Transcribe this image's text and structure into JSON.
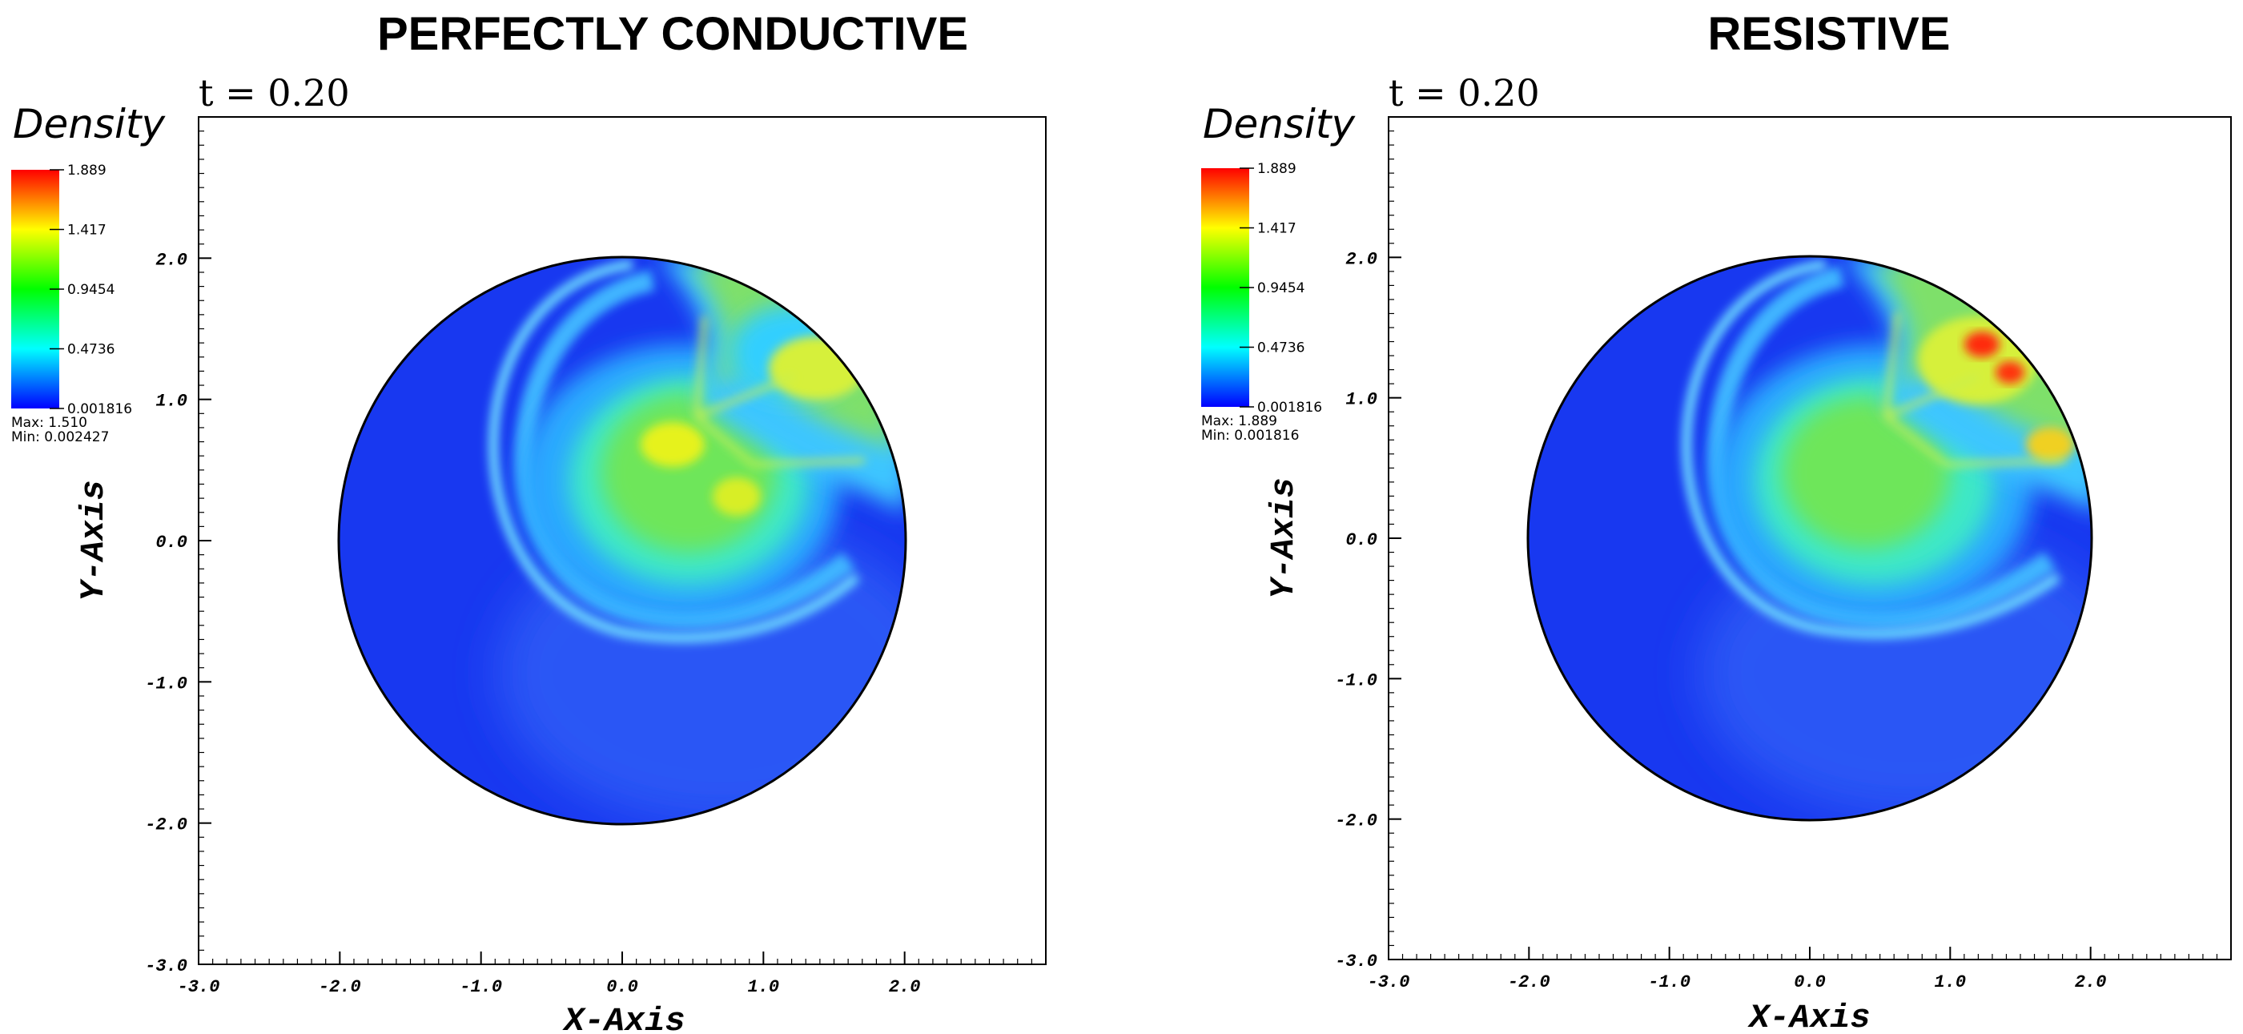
{
  "chart_data": [
    {
      "type": "heatmap",
      "title": "PERFECTLY CONDUCTIVE",
      "time_label": "t = 0.20",
      "colorbar": {
        "title": "Density",
        "ticks": [
          "1.889",
          "1.417",
          "0.9454",
          "0.4736",
          "0.001816"
        ],
        "max_text": "Max:  1.510",
        "min_text": "Min:  0.002427"
      },
      "xlabel": "X-Axis",
      "ylabel": "Y-Axis",
      "xlim": [
        -3.0,
        3.0
      ],
      "ylim": [
        -3.0,
        3.0
      ],
      "xticks": [
        "-3.0",
        "-2.0",
        "-1.0",
        "0.0",
        "1.0",
        "2.0"
      ],
      "yticks": [
        "-3.0",
        "-2.0",
        "-1.0",
        "0.0",
        "1.0",
        "2.0"
      ],
      "domain": {
        "shape": "circle",
        "center": [
          0,
          0
        ],
        "radius": 2.0
      },
      "colormap": [
        "#0000ff",
        "#00ffff",
        "#00ff00",
        "#ffff00",
        "#ff0000"
      ]
    },
    {
      "type": "heatmap",
      "title": "RESISTIVE",
      "time_label": "t = 0.20",
      "colorbar": {
        "title": "Density",
        "ticks": [
          "1.889",
          "1.417",
          "0.9454",
          "0.4736",
          "0.001816"
        ],
        "max_text": "Max:  1.889",
        "min_text": "Min:  0.001816"
      },
      "xlabel": "X-Axis",
      "ylabel": "Y-Axis",
      "xlim": [
        -3.0,
        3.0
      ],
      "ylim": [
        -3.0,
        3.0
      ],
      "xticks": [
        "-3.0",
        "-2.0",
        "-1.0",
        "0.0",
        "1.0",
        "2.0"
      ],
      "yticks": [
        "-3.0",
        "-2.0",
        "-1.0",
        "0.0",
        "1.0",
        "2.0"
      ],
      "domain": {
        "shape": "circle",
        "center": [
          0,
          0
        ],
        "radius": 2.0
      },
      "colormap": [
        "#0000ff",
        "#00ffff",
        "#00ff00",
        "#ffff00",
        "#ff0000"
      ]
    }
  ]
}
